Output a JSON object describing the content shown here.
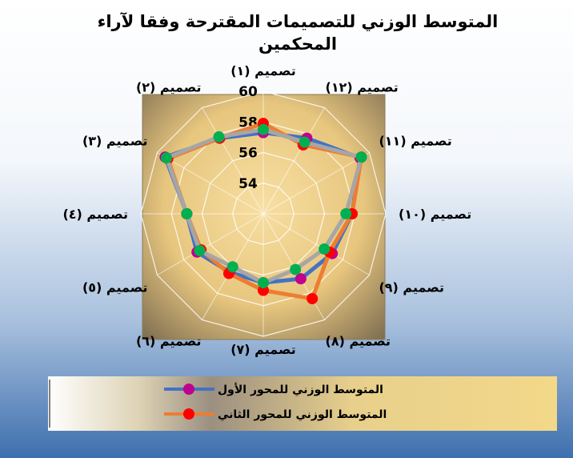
{
  "chart_data": {
    "type": "radar",
    "title": "المتوسط الوزني للتصميمات المقترحة وفقا لآراء المحكمين",
    "title_lines": [
      "المتوسط الوزني للتصميمات المقترحة وفقا لآراء",
      "المحكمين"
    ],
    "categories": [
      "تصميم (١)",
      "تصميم (١٢)",
      "تصميم (١١)",
      "تصميم (١٠)",
      "تصميم (٩)",
      "تصميم (٨)",
      "تصميم (٧)",
      "تصميم (٦)",
      "تصميم (٥)",
      "تصميم (٤)",
      "تصميم (٣)",
      "تصميم (٢)"
    ],
    "rlim": [
      52,
      60
    ],
    "ticks": [
      54,
      56,
      58,
      60
    ],
    "series": [
      {
        "name": "المتوسط الوزني للمحور الأول",
        "color": "#4472C4",
        "marker": "#C0008F",
        "values": [
          57.3,
          57.7,
          59.3,
          57.8,
          57.2,
          56.9,
          56.5,
          56.4,
          57.0,
          57.0,
          59.4,
          57.7
        ]
      },
      {
        "name": "المتوسط الوزني للمحور الثاني",
        "color": "#ED7D31",
        "marker": "#FF0000",
        "values": [
          57.9,
          57.2,
          59.4,
          57.8,
          57.0,
          58.4,
          57.0,
          56.5,
          56.7,
          57.0,
          59.2,
          57.7
        ]
      },
      {
        "name": "",
        "color": "#A6A6A6",
        "marker": "#00B050",
        "values": [
          57.5,
          57.4,
          59.4,
          57.4,
          56.6,
          56.2,
          56.5,
          56.0,
          56.8,
          57.0,
          59.3,
          57.8
        ]
      }
    ],
    "legend_position": "bottom",
    "grid": true
  }
}
